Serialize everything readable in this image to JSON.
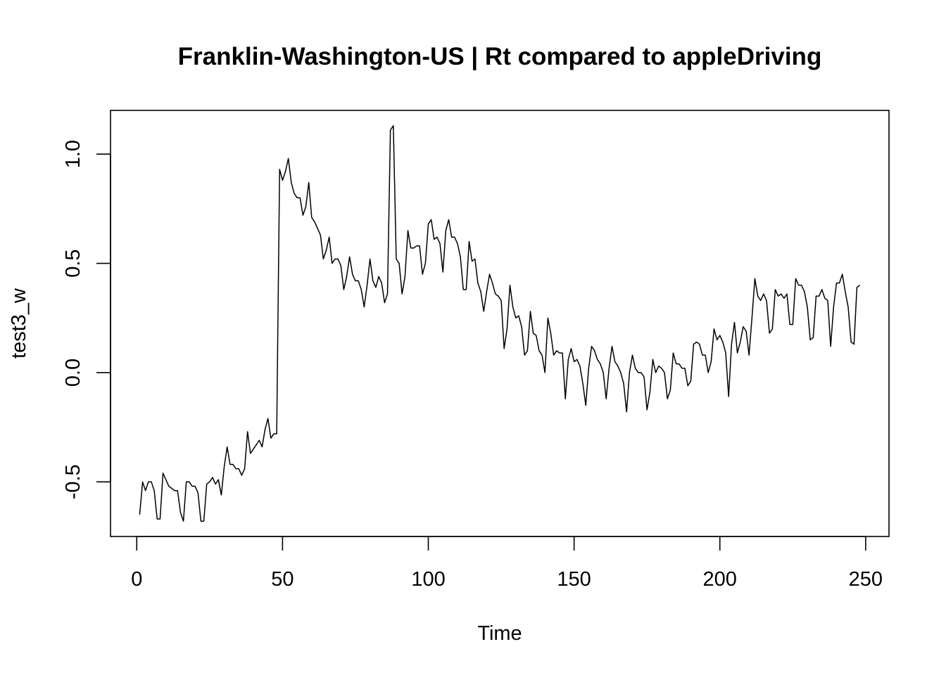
{
  "chart_data": {
    "type": "line",
    "title": "Franklin-Washington-US | Rt compared to appleDriving",
    "xlabel": "Time",
    "ylabel": "test3_w",
    "xlim": [
      -9,
      258
    ],
    "ylim": [
      -0.75,
      1.2
    ],
    "xticks": [
      0,
      50,
      100,
      150,
      200,
      250
    ],
    "yticks": [
      -0.5,
      0.0,
      0.5,
      1.0
    ],
    "xtick_labels": [
      "0",
      "50",
      "100",
      "150",
      "200",
      "250"
    ],
    "ytick_labels": [
      "-0.5",
      "0.0",
      "0.5",
      "1.0"
    ],
    "grid": false,
    "legend": "none",
    "line_color": "#000000",
    "series": [
      {
        "x": [
          1,
          2,
          3,
          4,
          5,
          6,
          7,
          8,
          9,
          10,
          11,
          12,
          13,
          14,
          15,
          16,
          17,
          18,
          19,
          20,
          21,
          22,
          23,
          24,
          25,
          26,
          27,
          28,
          29,
          30,
          31,
          32,
          33,
          34,
          35,
          36,
          37,
          38,
          39,
          40,
          41,
          42,
          43,
          44,
          45,
          46,
          47,
          48,
          49,
          50,
          51,
          52,
          53,
          54,
          55,
          56,
          57,
          58,
          59,
          60,
          61,
          62,
          63,
          64,
          65,
          66,
          67,
          68,
          69,
          70,
          71,
          72,
          73,
          74,
          75,
          76,
          77,
          78,
          79,
          80,
          81,
          82,
          83,
          84,
          85,
          86,
          87,
          88,
          89,
          90,
          91,
          92,
          93,
          94,
          95,
          96,
          97,
          98,
          99,
          100,
          101,
          102,
          103,
          104,
          105,
          106,
          107,
          108,
          109,
          110,
          111,
          112,
          113,
          114,
          115,
          116,
          117,
          118,
          119,
          120,
          121,
          122,
          123,
          124,
          125,
          126,
          127,
          128,
          129,
          130,
          131,
          132,
          133,
          134,
          135,
          136,
          137,
          138,
          139,
          140,
          141,
          142,
          143,
          144,
          145,
          146,
          147,
          148,
          149,
          150,
          151,
          152,
          153,
          154,
          155,
          156,
          157,
          158,
          159,
          160,
          161,
          162,
          163,
          164,
          165,
          166,
          167,
          168,
          169,
          170,
          171,
          172,
          173,
          174,
          175,
          176,
          177,
          178,
          179,
          180,
          181,
          182,
          183,
          184,
          185,
          186,
          187,
          188,
          189,
          190,
          191,
          192,
          193,
          194,
          195,
          196,
          197,
          198,
          199,
          200,
          201,
          202,
          203,
          204,
          205,
          206,
          207,
          208,
          209,
          210,
          211,
          212,
          213,
          214,
          215,
          216,
          217,
          218,
          219,
          220,
          221,
          222,
          223,
          224,
          225,
          226,
          227,
          228,
          229,
          230,
          231,
          232,
          233,
          234,
          235,
          236,
          237,
          238,
          239,
          240,
          241,
          242,
          243,
          244,
          245,
          246,
          247,
          248
        ],
        "values": [
          -0.65,
          -0.5,
          -0.54,
          -0.5,
          -0.5,
          -0.54,
          -0.67,
          -0.67,
          -0.46,
          -0.49,
          -0.52,
          -0.53,
          -0.54,
          -0.54,
          -0.64,
          -0.68,
          -0.5,
          -0.5,
          -0.52,
          -0.52,
          -0.55,
          -0.68,
          -0.68,
          -0.51,
          -0.5,
          -0.48,
          -0.51,
          -0.49,
          -0.56,
          -0.43,
          -0.34,
          -0.42,
          -0.42,
          -0.44,
          -0.44,
          -0.47,
          -0.44,
          -0.27,
          -0.37,
          -0.35,
          -0.33,
          -0.31,
          -0.34,
          -0.26,
          -0.21,
          -0.3,
          -0.28,
          -0.28,
          0.93,
          0.88,
          0.92,
          0.98,
          0.87,
          0.82,
          0.8,
          0.8,
          0.72,
          0.76,
          0.87,
          0.71,
          0.69,
          0.66,
          0.63,
          0.52,
          0.56,
          0.62,
          0.5,
          0.52,
          0.52,
          0.49,
          0.38,
          0.44,
          0.53,
          0.45,
          0.42,
          0.42,
          0.38,
          0.3,
          0.4,
          0.52,
          0.42,
          0.39,
          0.44,
          0.41,
          0.32,
          0.36,
          1.11,
          1.13,
          0.52,
          0.5,
          0.36,
          0.44,
          0.65,
          0.57,
          0.57,
          0.58,
          0.58,
          0.45,
          0.5,
          0.68,
          0.7,
          0.61,
          0.62,
          0.59,
          0.46,
          0.65,
          0.7,
          0.62,
          0.62,
          0.59,
          0.53,
          0.38,
          0.38,
          0.6,
          0.51,
          0.52,
          0.41,
          0.37,
          0.28,
          0.37,
          0.45,
          0.41,
          0.36,
          0.35,
          0.33,
          0.11,
          0.2,
          0.4,
          0.3,
          0.25,
          0.26,
          0.21,
          0.08,
          0.1,
          0.28,
          0.18,
          0.17,
          0.1,
          0.08,
          0.0,
          0.25,
          0.18,
          0.08,
          0.1,
          0.09,
          0.09,
          -0.12,
          0.06,
          0.11,
          0.05,
          0.06,
          0.03,
          -0.05,
          -0.15,
          0.02,
          0.12,
          0.1,
          0.06,
          0.04,
          0.0,
          -0.12,
          0.02,
          0.12,
          0.05,
          0.03,
          0.0,
          -0.05,
          -0.18,
          0.0,
          0.08,
          0.02,
          0.0,
          0.0,
          -0.02,
          -0.17,
          -0.09,
          0.06,
          0.0,
          0.03,
          0.02,
          0.0,
          -0.12,
          -0.08,
          0.09,
          0.04,
          0.04,
          0.02,
          0.02,
          -0.06,
          -0.04,
          0.13,
          0.14,
          0.13,
          0.08,
          0.08,
          0.0,
          0.05,
          0.2,
          0.15,
          0.17,
          0.14,
          0.09,
          -0.11,
          0.13,
          0.23,
          0.09,
          0.14,
          0.21,
          0.19,
          0.08,
          0.25,
          0.43,
          0.35,
          0.33,
          0.36,
          0.33,
          0.18,
          0.2,
          0.38,
          0.35,
          0.36,
          0.34,
          0.36,
          0.22,
          0.22,
          0.43,
          0.4,
          0.4,
          0.37,
          0.3,
          0.15,
          0.16,
          0.35,
          0.35,
          0.38,
          0.34,
          0.33,
          0.12,
          0.3,
          0.41,
          0.41,
          0.45,
          0.37,
          0.3,
          0.14,
          0.13,
          0.39,
          0.4
        ]
      }
    ]
  }
}
